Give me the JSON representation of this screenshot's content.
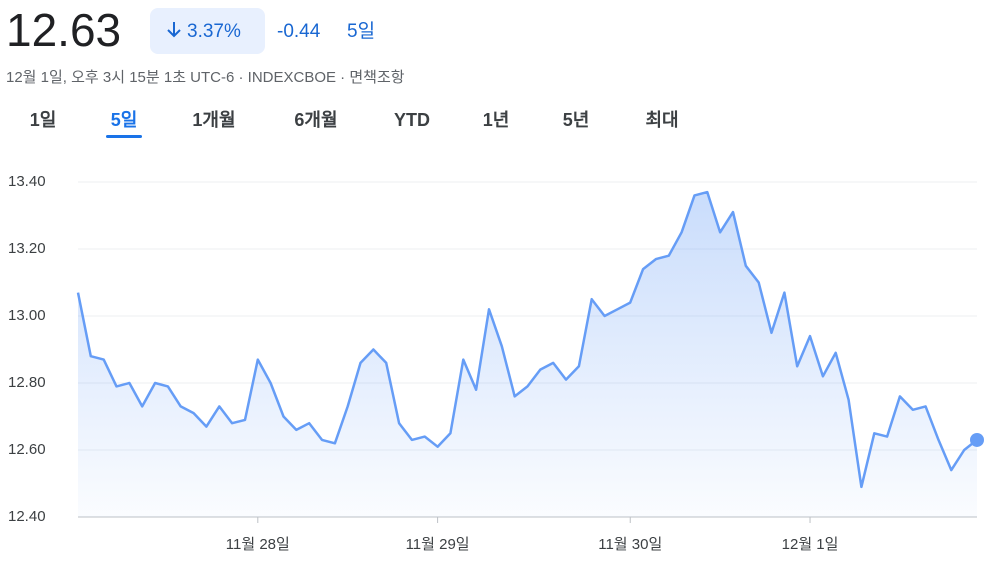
{
  "header": {
    "price": "12.63",
    "change_percent": "3.37%",
    "change": "-0.44",
    "period": "5일",
    "subtitle": "12월 1일, 오후 3시 15분 1초 UTC-6 · INDEXCBOE · 면책조항"
  },
  "tabs": {
    "items": [
      "1일",
      "5일",
      "1개월",
      "6개월",
      "YTD",
      "1년",
      "5년",
      "최대"
    ],
    "selected": 1
  },
  "chart_data": {
    "type": "line",
    "categories": [
      null,
      null,
      null,
      null,
      null,
      null,
      null,
      null,
      null,
      null,
      null,
      null,
      null,
      null,
      "11월 28일",
      null,
      null,
      null,
      null,
      null,
      null,
      null,
      null,
      null,
      null,
      null,
      null,
      null,
      "11월 29일",
      null,
      null,
      null,
      null,
      null,
      null,
      null,
      null,
      null,
      null,
      null,
      null,
      null,
      null,
      "11월 30일",
      null,
      null,
      null,
      null,
      null,
      null,
      null,
      null,
      null,
      null,
      null,
      null,
      null,
      "12월 1일",
      null,
      null,
      null,
      null,
      null,
      null,
      null,
      null,
      null,
      null,
      null,
      null,
      null
    ],
    "series": [
      {
        "color": "#669df6",
        "values": [
          13.07,
          12.88,
          12.87,
          12.79,
          12.8,
          12.73,
          12.8,
          12.79,
          12.73,
          12.71,
          12.67,
          12.73,
          12.68,
          12.69,
          12.87,
          12.8,
          12.7,
          12.66,
          12.68,
          12.63,
          12.62,
          12.73,
          12.86,
          12.9,
          12.86,
          12.68,
          12.63,
          12.64,
          12.61,
          12.65,
          12.87,
          12.78,
          13.02,
          12.91,
          12.76,
          12.79,
          12.84,
          12.86,
          12.81,
          12.85,
          13.05,
          13.0,
          13.02,
          13.04,
          13.14,
          13.17,
          13.18,
          13.25,
          13.36,
          13.37,
          13.25,
          13.31,
          13.15,
          13.1,
          12.95,
          13.07,
          12.85,
          12.94,
          12.82,
          12.89,
          12.75,
          12.49,
          12.65,
          12.64,
          12.76,
          12.72,
          12.73,
          12.63,
          12.54,
          12.6,
          12.63
        ]
      }
    ],
    "ylim": [
      12.4,
      13.4
    ],
    "yticks": [
      {
        "value": 12.4,
        "label": "12.40"
      },
      {
        "value": 12.6,
        "label": "12.60"
      },
      {
        "value": 12.8,
        "label": "12.80"
      },
      {
        "value": 13.0,
        "label": "13.00"
      },
      {
        "value": 13.2,
        "label": "13.20"
      },
      {
        "value": 13.4,
        "label": "13.40"
      }
    ],
    "grid": true
  }
}
